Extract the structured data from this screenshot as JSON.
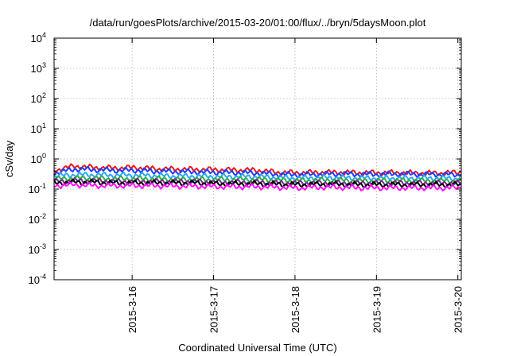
{
  "chart_data": {
    "type": "line",
    "title": "/data/run/goesPlots/archive/2015-03-20/01:00/flux/../bryn/5daysMoon.plot",
    "xlabel": "Coordinated Universal Time (UTC)",
    "ylabel": "cSv/day",
    "yscale": "log",
    "ylim": [
      0.0001,
      10000
    ],
    "xlim": [
      "2015-03-15T01:00",
      "2015-03-20T01:00"
    ],
    "grid": true,
    "x_ticks": [
      {
        "label": "2015-3-16",
        "value": "2015-03-16T00:00"
      },
      {
        "label": "2015-3-17",
        "value": "2015-03-17T00:00"
      },
      {
        "label": "2015-3-18",
        "value": "2015-03-18T00:00"
      },
      {
        "label": "2015-3-19",
        "value": "2015-03-19T00:00"
      },
      {
        "label": "2015-3-20",
        "value": "2015-03-20T00:00"
      }
    ],
    "y_ticks": [
      {
        "base": "10",
        "exp": "-4",
        "value": 0.0001
      },
      {
        "base": "10",
        "exp": "-3",
        "value": 0.001
      },
      {
        "base": "10",
        "exp": "-2",
        "value": 0.01
      },
      {
        "base": "10",
        "exp": "-1",
        "value": 0.1
      },
      {
        "base": "10",
        "exp": "0",
        "value": 1
      },
      {
        "base": "10",
        "exp": "1",
        "value": 10
      },
      {
        "base": "10",
        "exp": "2",
        "value": 100
      },
      {
        "base": "10",
        "exp": "3",
        "value": 1000
      },
      {
        "base": "10",
        "exp": "4",
        "value": 10000
      }
    ],
    "x": [
      "2015-03-15T01:00",
      "2015-03-15T07:00",
      "2015-03-15T13:00",
      "2015-03-15T19:00",
      "2015-03-16T01:00",
      "2015-03-16T07:00",
      "2015-03-16T13:00",
      "2015-03-16T19:00",
      "2015-03-17T01:00",
      "2015-03-17T07:00",
      "2015-03-17T13:00",
      "2015-03-17T19:00",
      "2015-03-18T01:00",
      "2015-03-18T07:00",
      "2015-03-18T13:00",
      "2015-03-18T19:00",
      "2015-03-19T01:00",
      "2015-03-19T07:00",
      "2015-03-19T13:00",
      "2015-03-19T19:00",
      "2015-03-20T01:00"
    ],
    "series": [
      {
        "color": "#e8191e",
        "values": [
          0.42,
          0.58,
          0.52,
          0.5,
          0.52,
          0.47,
          0.46,
          0.45,
          0.44,
          0.43,
          0.42,
          0.36,
          0.35,
          0.36,
          0.36,
          0.35,
          0.35,
          0.35,
          0.34,
          0.34,
          0.36
        ]
      },
      {
        "color": "#1f3cff",
        "values": [
          0.34,
          0.46,
          0.44,
          0.42,
          0.42,
          0.39,
          0.38,
          0.37,
          0.36,
          0.35,
          0.34,
          0.31,
          0.3,
          0.31,
          0.32,
          0.31,
          0.31,
          0.32,
          0.31,
          0.31,
          0.3
        ]
      },
      {
        "color": "#2aa8ff",
        "values": [
          0.27,
          0.3,
          0.3,
          0.29,
          0.29,
          0.28,
          0.27,
          0.27,
          0.26,
          0.26,
          0.26,
          0.24,
          0.23,
          0.24,
          0.24,
          0.23,
          0.23,
          0.23,
          0.23,
          0.23,
          0.22
        ]
      },
      {
        "color": "#2ab04a",
        "values": [
          0.22,
          0.23,
          0.23,
          0.22,
          0.22,
          0.22,
          0.21,
          0.21,
          0.21,
          0.21,
          0.21,
          0.2,
          0.19,
          0.2,
          0.2,
          0.19,
          0.19,
          0.19,
          0.19,
          0.19,
          0.19
        ]
      },
      {
        "color": "#7a2a8a",
        "values": [
          0.18,
          0.19,
          0.19,
          0.18,
          0.18,
          0.18,
          0.18,
          0.18,
          0.17,
          0.17,
          0.17,
          0.16,
          0.16,
          0.16,
          0.16,
          0.16,
          0.16,
          0.16,
          0.16,
          0.16,
          0.16
        ]
      },
      {
        "color": "#000000",
        "values": [
          0.16,
          0.17,
          0.17,
          0.16,
          0.16,
          0.16,
          0.16,
          0.16,
          0.15,
          0.15,
          0.15,
          0.145,
          0.14,
          0.145,
          0.145,
          0.14,
          0.14,
          0.14,
          0.14,
          0.14,
          0.14
        ]
      },
      {
        "color": "#ff10ff",
        "values": [
          0.13,
          0.14,
          0.13,
          0.13,
          0.13,
          0.13,
          0.125,
          0.125,
          0.12,
          0.12,
          0.12,
          0.115,
          0.11,
          0.115,
          0.115,
          0.11,
          0.11,
          0.11,
          0.11,
          0.11,
          0.11
        ]
      }
    ]
  }
}
